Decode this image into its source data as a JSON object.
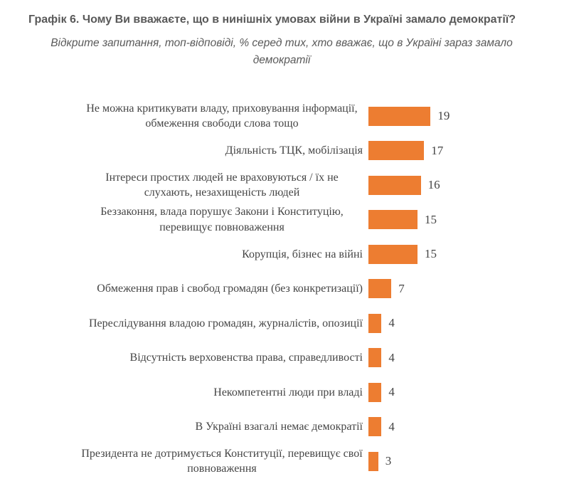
{
  "header": {
    "title": "Графік 6. Чому Ви вважаєте, що в нинішніх умовах війни в Україні замало демократії?",
    "subtitle_lines": [
      "Відкрите запитання, топ-відповіді, % серед тих, хто вважає, що в Україні зараз замало",
      "демократії"
    ]
  },
  "colors": {
    "bar": "#ED7D31",
    "heading_text": "#595959",
    "label_text": "#454545"
  },
  "chart_data": {
    "type": "bar",
    "orientation": "horizontal",
    "title": "Графік 6. Чому Ви вважаєте, що в нинішніх умовах війни в Україні замало демократії?",
    "subtitle": "Відкрите запитання, топ-відповіді, % серед тих, хто вважає, що в Україні зараз замало демократії",
    "categories": [
      "Не можна критикувати владу, приховування інформації, обмеження свободи слова тощо",
      "Діяльність ТЦК, мобілізація",
      "Інтереси простих людей не враховуються / їх не слухають, незахищеність людей",
      "Беззаконня, влада порушує Закони і Конституцію, перевищує повноваження",
      "Корупція, бізнес на війні",
      "Обмеження прав і свобод громадян (без конкретизації)",
      "Переслідування владою громадян, журналістів, опозиції",
      "Відсутність верховенства права, справедливості",
      "Некомпетентні люди при владі",
      "В Україні взагалі немає демократії",
      "Президента не дотримується Конституції, перевищує свої повноваження"
    ],
    "values": [
      19,
      17,
      16,
      15,
      15,
      7,
      4,
      4,
      4,
      4,
      3
    ],
    "value_labels": true,
    "xlabel": "",
    "ylabel": "",
    "xlim": [
      0,
      20
    ],
    "grid": false,
    "legend": "none",
    "bar_color": "#ED7D31"
  }
}
